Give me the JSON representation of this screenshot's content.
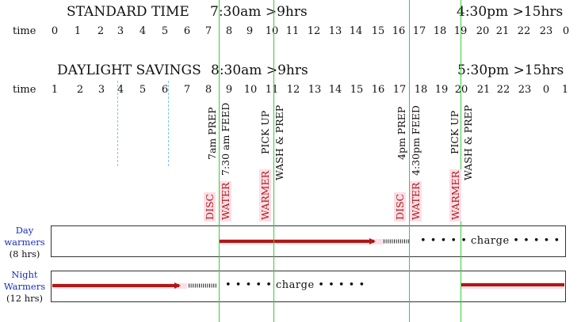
{
  "standard": {
    "title": "STANDARD TIME",
    "start_note": "7:30am >9hrs",
    "end_note": "4:30pm >15hrs",
    "time_label": "time",
    "hours": [
      "0",
      "1",
      "2",
      "3",
      "4",
      "5",
      "6",
      "7",
      "8",
      "9",
      "10",
      "11",
      "12",
      "13",
      "14",
      "15",
      "16",
      "17",
      "18",
      "19",
      "20",
      "21",
      "22",
      "23",
      "0"
    ]
  },
  "daylight": {
    "title": "DAYLIGHT SAVINGS",
    "start_note": "8:30am >9hrs",
    "end_note": "5:30pm >15hrs",
    "time_label": "time",
    "hours": [
      "1",
      "2",
      "3",
      "4",
      "5",
      "6",
      "7",
      "8",
      "9",
      "10",
      "11",
      "12",
      "13",
      "14",
      "15",
      "16",
      "17",
      "18",
      "19",
      "20",
      "21",
      "22",
      "23",
      "0",
      "1"
    ]
  },
  "events": [
    {
      "label": "7am PREP",
      "style": "black"
    },
    {
      "label": "7:30 am FEED",
      "style": "black"
    },
    {
      "label": "PICK UP",
      "style": "black"
    },
    {
      "label": "WASH & PREP",
      "style": "black"
    },
    {
      "label": "4pm PREP",
      "style": "black"
    },
    {
      "label": "4:30pm FEED",
      "style": "black"
    },
    {
      "label": "PICK UP",
      "style": "black"
    },
    {
      "label": "WASH & PREP",
      "style": "black"
    }
  ],
  "tags": [
    "DISC",
    "WATER",
    "WARMER",
    "DISC",
    "WATER",
    "WARMER"
  ],
  "rows": {
    "day": {
      "name_line1": "Day",
      "name_line2": "warmers",
      "duration": "(8 hrs)",
      "charge": "• • • • • charge • • • • •"
    },
    "night": {
      "name_line1": "Night",
      "name_line2": "Warmers",
      "duration": "(12 hrs)",
      "charge": "• • • • • charge • • • • •"
    }
  },
  "colors": {
    "guide_line": "#35d135",
    "arrow": "#b01818",
    "highlight": "#fbdfe6",
    "label_blue": "#1a2fb8",
    "dashed_guide": "#7fc4f0"
  }
}
